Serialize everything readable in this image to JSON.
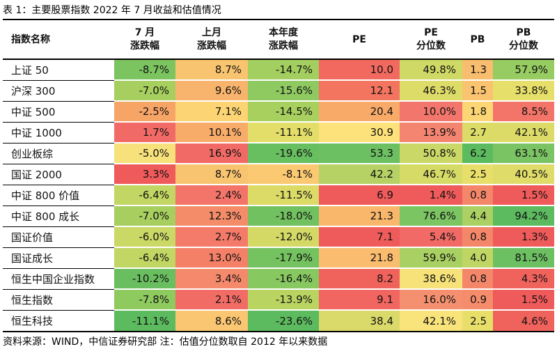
{
  "caption": "表 1：主要股票指数 2022 年 7 月收益和估值情况",
  "footer": "资料来源：WIND，中信证券研究部    注：估值分位数取自 2012 年以来数据",
  "headers": [
    [
      "指数名称"
    ],
    [
      "7 月",
      "涨跌幅"
    ],
    [
      "上月",
      "涨跌幅"
    ],
    [
      "本年度",
      "涨跌幅"
    ],
    [
      "PE"
    ],
    [
      "PE",
      "分位数"
    ],
    [
      "PB"
    ],
    [
      "PB",
      "分位数"
    ]
  ],
  "rows": [
    {
      "name": "上证 50",
      "cells": [
        "-8.7%",
        "8.7%",
        "-14.7%",
        "10.0",
        "49.8%",
        "1.3",
        "57.9%"
      ],
      "colors": [
        "#7cc45f",
        "#f9c470",
        "#a2cf5f",
        "#f2695f",
        "#cfda66",
        "#f8bd6e",
        "#96cc61"
      ]
    },
    {
      "name": "沪深 300",
      "cells": [
        "-7.0%",
        "9.6%",
        "-15.6%",
        "12.1",
        "46.3%",
        "1.5",
        "33.8%"
      ],
      "colors": [
        "#a6cf5f",
        "#f8b46c",
        "#8fca61",
        "#f3745f",
        "#dddc68",
        "#f9c370",
        "#e6df6a"
      ]
    },
    {
      "name": "中证 500",
      "cells": [
        "-2.5%",
        "7.1%",
        "-14.5%",
        "20.4",
        "10.0%",
        "1.8",
        "8.5%"
      ],
      "colors": [
        "#f7a467",
        "#fcd474",
        "#a8d05f",
        "#f8aa68",
        "#f3766c",
        "#fcd674",
        "#f37468"
      ]
    },
    {
      "name": "中证 1000",
      "cells": [
        "1.7%",
        "10.1%",
        "-11.1%",
        "30.9",
        "13.9%",
        "2.7",
        "42.1%"
      ],
      "colors": [
        "#f26a66",
        "#f8ac69",
        "#e2de69",
        "#fde17a",
        "#f48571",
        "#dcdb68",
        "#dcdb68"
      ]
    },
    {
      "name": "创业板综",
      "cells": [
        "-5.0%",
        "16.9%",
        "-19.6%",
        "53.3",
        "50.8%",
        "6.2",
        "63.1%"
      ],
      "colors": [
        "#f6e17a",
        "#f26a66",
        "#68bf60",
        "#6cc062",
        "#c9d866",
        "#5cbb5e",
        "#7ac463"
      ]
    },
    {
      "name": "国证 2000",
      "cells": [
        "3.3%",
        "8.7%",
        "-8.1%",
        "42.2",
        "46.7%",
        "2.5",
        "40.5%"
      ],
      "colors": [
        "#ef5a5a",
        "#f9c470",
        "#fbc971",
        "#b6d264",
        "#d6db68",
        "#e8df6a",
        "#dfdc69"
      ]
    },
    {
      "name": "中证 800 价值",
      "cells": [
        "-6.4%",
        "2.4%",
        "-11.5%",
        "6.9",
        "1.4%",
        "0.8",
        "1.5%"
      ],
      "colors": [
        "#c2d664",
        "#f37468",
        "#dcdb68",
        "#ef5a5a",
        "#ef5a5a",
        "#f4876a",
        "#ef5a5a"
      ]
    },
    {
      "name": "中证 800 成长",
      "cells": [
        "-7.0%",
        "12.3%",
        "-18.0%",
        "21.3",
        "76.6%",
        "4.4",
        "94.2%"
      ],
      "colors": [
        "#a6cf5f",
        "#f48c69",
        "#72c160",
        "#f9b76c",
        "#7cc563",
        "#abd063",
        "#5cbb5e"
      ]
    },
    {
      "name": "国证价值",
      "cells": [
        "-6.0%",
        "2.7%",
        "-12.0%",
        "7.1",
        "5.4%",
        "0.8",
        "1.3%"
      ],
      "colors": [
        "#cad866",
        "#f47a69",
        "#d4d966",
        "#ef5b5a",
        "#f16a66",
        "#f4876a",
        "#ef5a5a"
      ]
    },
    {
      "name": "国证成长",
      "cells": [
        "-6.4%",
        "13.0%",
        "-17.9%",
        "21.8",
        "59.9%",
        "4.0",
        "81.5%"
      ],
      "colors": [
        "#c2d664",
        "#f48068",
        "#74c260",
        "#fabc6e",
        "#a9d063",
        "#bfd665",
        "#6cc062"
      ]
    },
    {
      "name": "恒生中国企业指数",
      "cells": [
        "-10.2%",
        "3.4%",
        "-16.4%",
        "8.2",
        "38.6%",
        "0.8",
        "4.3%"
      ],
      "colors": [
        "#69bf5f",
        "#f5896b",
        "#88c861",
        "#f0625c",
        "#f6e279",
        "#f4876a",
        "#f0625c"
      ]
    },
    {
      "name": "恒生指数",
      "cells": [
        "-7.8%",
        "2.1%",
        "-13.9%",
        "9.1",
        "16.0%",
        "0.9",
        "1.5%"
      ],
      "colors": [
        "#8fca5f",
        "#f26c66",
        "#b9d461",
        "#f16660",
        "#f4906f",
        "#f58c6b",
        "#ef5a5a"
      ]
    },
    {
      "name": "恒生科技",
      "cells": [
        "-11.1%",
        "8.6%",
        "-23.6%",
        "38.4",
        "42.1%",
        "2.5",
        "4.6%"
      ],
      "colors": [
        "#5cbb5e",
        "#fac671",
        "#5cbb5e",
        "#d9da6a",
        "#f9e37b",
        "#e8df6a",
        "#f0625c"
      ]
    }
  ]
}
